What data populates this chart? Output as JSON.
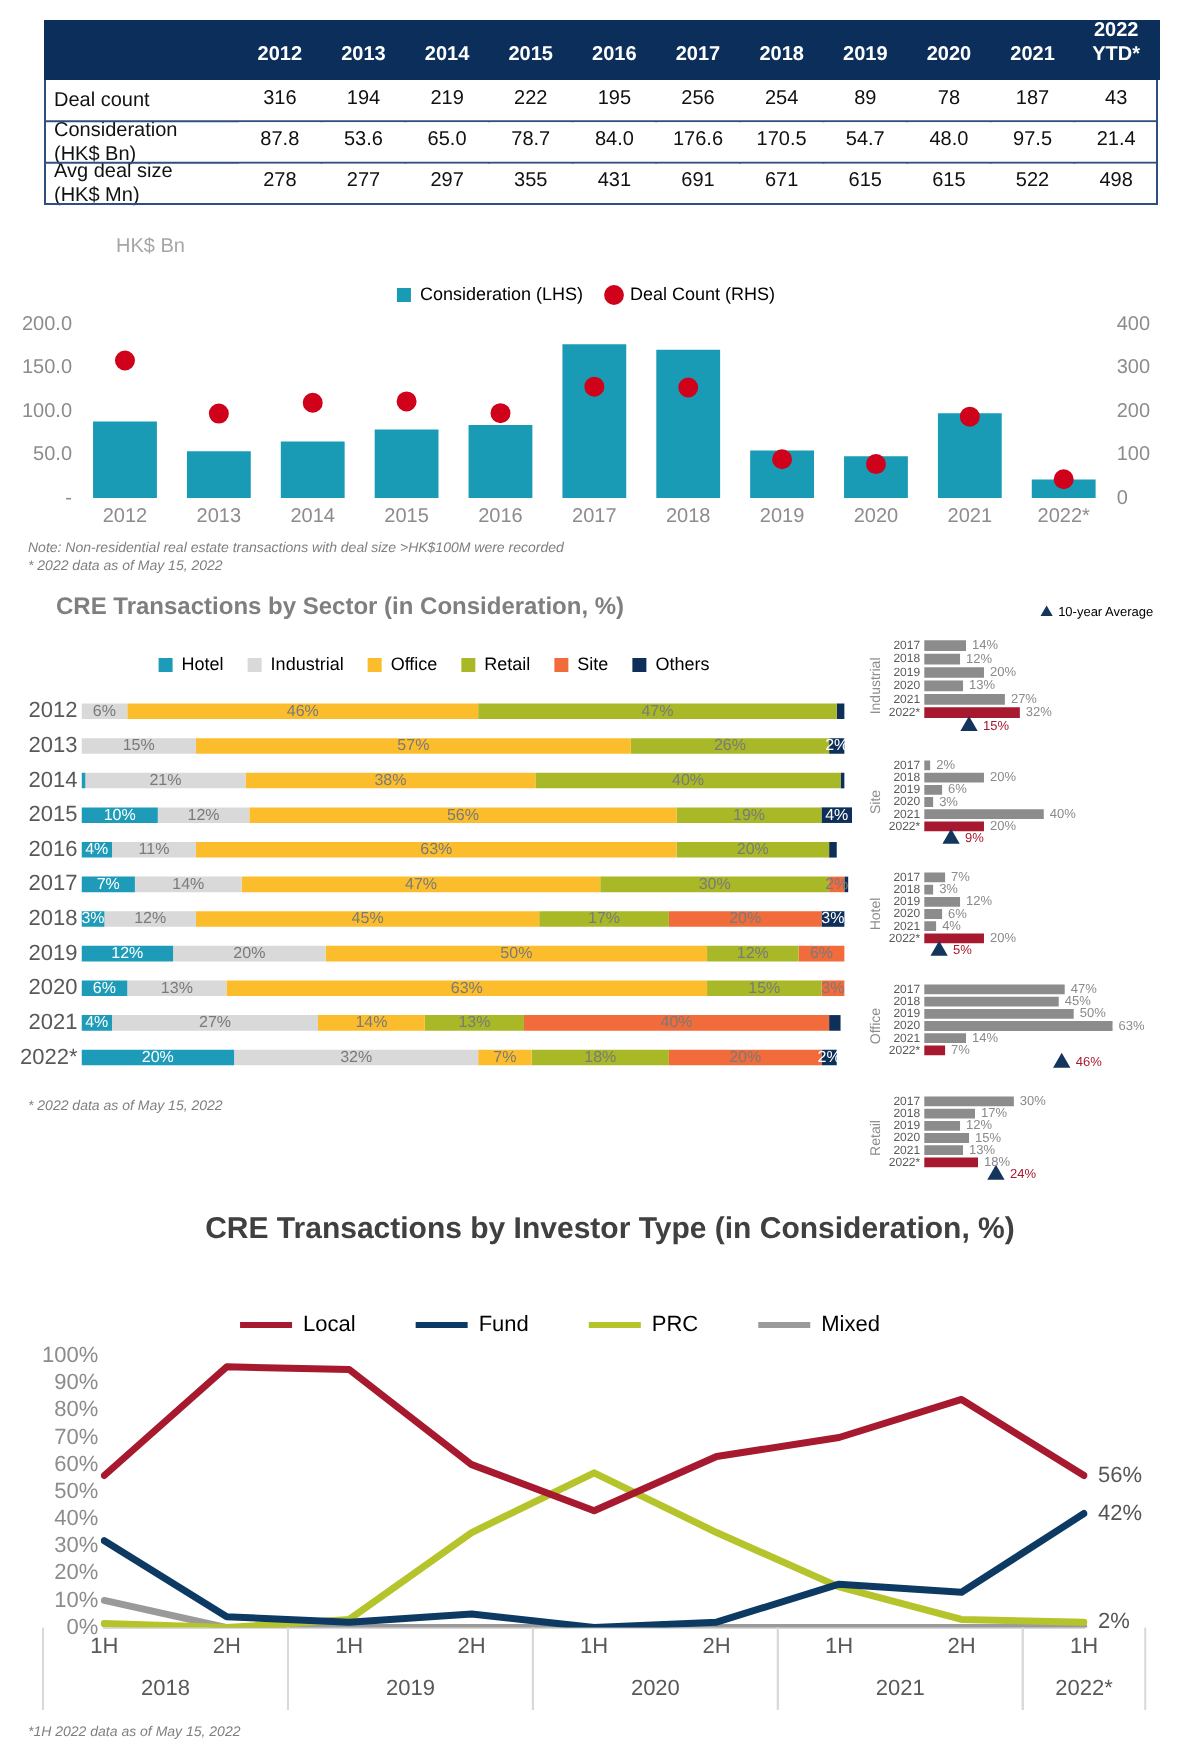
{
  "chart_data": [
    {
      "type": "heatmap",
      "categories": [
        "2012",
        "2013",
        "2014",
        "2015",
        "2016",
        "2017",
        "2018",
        "2019",
        "2020",
        "2021",
        "2022 YTD*"
      ],
      "y_categories": [
        "Deal count",
        "Consideration (HK$ Bn)",
        "Avg deal size (HK$ Mn)"
      ],
      "cells": [
        [
          316,
          194,
          219,
          222,
          195,
          256,
          254,
          89,
          78,
          187,
          43
        ],
        [
          87.8,
          53.6,
          65.0,
          78.7,
          84.0,
          176.6,
          170.5,
          54.7,
          48.0,
          97.5,
          21.4
        ],
        [
          278,
          277,
          297,
          355,
          431,
          691,
          671,
          615,
          615,
          522,
          498
        ]
      ],
      "cell_labels": [
        [
          "316",
          "194",
          "219",
          "222",
          "195",
          "256",
          "254",
          "89",
          "78",
          "187",
          "43"
        ],
        [
          "87.8",
          "53.6",
          "65.0",
          "78.7",
          "84.0",
          "176.6",
          "170.5",
          "54.7",
          "48.0",
          "97.5",
          "21.4"
        ],
        [
          "278",
          "277",
          "297",
          "355",
          "431",
          "691",
          "671",
          "615",
          "615",
          "522",
          "498"
        ]
      ]
    },
    {
      "type": "bar",
      "categories": [
        "2012",
        "2013",
        "2014",
        "2015",
        "2016",
        "2017",
        "2018",
        "2019",
        "2020",
        "2021",
        "2022*"
      ],
      "ylabel": "HK$ Bn",
      "legend": "top",
      "grid": false,
      "ylim": [
        0,
        200
      ],
      "yticks": [
        {
          "value": 0,
          "label": "-"
        },
        {
          "value": 50,
          "label": "50.0"
        },
        {
          "value": 100,
          "label": "100.0"
        },
        {
          "value": 150,
          "label": "150.0"
        },
        {
          "value": 200,
          "label": "200.0"
        }
      ],
      "y2lim": [
        0,
        400
      ],
      "y2ticks": [
        0,
        100,
        200,
        300,
        400
      ],
      "series": [
        {
          "name": "Consideration (LHS)",
          "type": "bar",
          "color": "#1a9bb5",
          "values": [
            87.8,
            53.6,
            65.0,
            78.7,
            84.0,
            176.6,
            170.5,
            54.7,
            48.0,
            97.5,
            21.4
          ]
        },
        {
          "name": "Deal Count (RHS)",
          "type": "scatter",
          "axis": "y2",
          "marker": "circle",
          "color": "#d0021b",
          "values": [
            316,
            194,
            219,
            222,
            195,
            256,
            254,
            89,
            78,
            187,
            43
          ]
        }
      ],
      "annotations": [
        "Note: Non-residential real estate transactions with deal size >HK$100M were recorded",
        "* 2022 data as of May 15, 2022"
      ]
    },
    {
      "type": "bar",
      "title": "CRE Transactions by Sector (in Consideration, %)",
      "orientation": "horizontal",
      "stacked": true,
      "legend": "top",
      "grid": false,
      "categories": [
        "2012",
        "2013",
        "2014",
        "2015",
        "2016",
        "2017",
        "2018",
        "2019",
        "2020",
        "2021",
        "2022*"
      ],
      "series": [
        {
          "name": "Hotel",
          "color": "#1e9bb8",
          "values": [
            0,
            0,
            0.5,
            10,
            4,
            7,
            3,
            12,
            6,
            4,
            20
          ],
          "value_labels": [
            null,
            null,
            null,
            "10%",
            "4%",
            "7%",
            "3%",
            "12%",
            "6%",
            "4%",
            "20%"
          ]
        },
        {
          "name": "Industrial",
          "color": "#d9d9d9",
          "values": [
            6,
            15,
            21,
            12,
            11,
            14,
            12,
            20,
            13,
            27,
            32
          ],
          "value_labels": [
            "6%",
            "15%",
            "21%",
            "12%",
            "11%",
            "14%",
            "12%",
            "20%",
            "13%",
            "27%",
            "32%"
          ]
        },
        {
          "name": "Office",
          "color": "#fbbd2c",
          "values": [
            46,
            57,
            38,
            56,
            63,
            47,
            45,
            50,
            63,
            14,
            7
          ],
          "value_labels": [
            "46%",
            "57%",
            "38%",
            "56%",
            "63%",
            "47%",
            "45%",
            "50%",
            "63%",
            "14%",
            "7%"
          ]
        },
        {
          "name": "Retail",
          "color": "#a8b826",
          "values": [
            47,
            26,
            40,
            19,
            20,
            30,
            17,
            12,
            15,
            13,
            18
          ],
          "value_labels": [
            "47%",
            "26%",
            "40%",
            "19%",
            "20%",
            "30%",
            "17%",
            "12%",
            "15%",
            "13%",
            "18%"
          ]
        },
        {
          "name": "Site",
          "color": "#f26b3a",
          "values": [
            0,
            0,
            0,
            0,
            0,
            2,
            20,
            6,
            3,
            40,
            20
          ],
          "value_labels": [
            null,
            null,
            null,
            null,
            null,
            "2%",
            "20%",
            "6%",
            "3%",
            "40%",
            "20%"
          ]
        },
        {
          "name": "Others",
          "color": "#0d2f5a",
          "values": [
            1,
            2,
            0.5,
            4,
            1,
            0.5,
            3,
            0,
            0,
            1.5,
            2
          ],
          "value_labels": [
            null,
            "2%",
            null,
            "4%",
            null,
            null,
            "3%",
            null,
            null,
            null,
            "2%"
          ]
        }
      ],
      "annotations": [
        "* 2022 data as of May 15, 2022"
      ]
    },
    {
      "type": "bar",
      "orientation": "horizontal",
      "ylabel": "Industrial",
      "legend": "top right",
      "categories": [
        "2017",
        "2018",
        "2019",
        "2020",
        "2021",
        "2022*",
        null
      ],
      "series": [
        {
          "type": "bar",
          "colors": [
            "#8c8c8c",
            "#8c8c8c",
            "#8c8c8c",
            "#8c8c8c",
            "#8c8c8c",
            "#a6192e",
            null
          ],
          "values": [
            14,
            12,
            20,
            13,
            27,
            32,
            null
          ],
          "value_labels": [
            "14%",
            "12%",
            "20%",
            "13%",
            "27%",
            "32%",
            null
          ]
        },
        {
          "name": "10-year Average",
          "type": "scatter",
          "marker": "triangle",
          "color": "#14365d",
          "values": [
            null,
            null,
            null,
            null,
            null,
            null,
            15
          ],
          "value_labels": [
            null,
            null,
            null,
            null,
            null,
            null,
            "15%"
          ]
        }
      ]
    },
    {
      "type": "bar",
      "orientation": "horizontal",
      "ylabel": "Site",
      "categories": [
        "2017",
        "2018",
        "2019",
        "2020",
        "2021",
        "2022*",
        null
      ],
      "series": [
        {
          "type": "bar",
          "colors": [
            "#8c8c8c",
            "#8c8c8c",
            "#8c8c8c",
            "#8c8c8c",
            "#8c8c8c",
            "#a6192e",
            null
          ],
          "values": [
            2,
            20,
            6,
            3,
            40,
            20,
            null
          ],
          "value_labels": [
            "2%",
            "20%",
            "6%",
            "3%",
            "40%",
            "20%",
            null
          ]
        },
        {
          "type": "scatter",
          "marker": "triangle",
          "color": "#14365d",
          "values": [
            null,
            null,
            null,
            null,
            null,
            null,
            9
          ],
          "value_labels": [
            null,
            null,
            null,
            null,
            null,
            null,
            "9%"
          ]
        }
      ]
    },
    {
      "type": "bar",
      "orientation": "horizontal",
      "ylabel": "Hotel",
      "categories": [
        "2017",
        "2018",
        "2019",
        "2020",
        "2021",
        "2022*",
        null
      ],
      "series": [
        {
          "type": "bar",
          "colors": [
            "#8c8c8c",
            "#8c8c8c",
            "#8c8c8c",
            "#8c8c8c",
            "#8c8c8c",
            "#a6192e",
            null
          ],
          "values": [
            7,
            3,
            12,
            6,
            4,
            20,
            null
          ],
          "value_labels": [
            "7%",
            "3%",
            "12%",
            "6%",
            "4%",
            "20%",
            null
          ]
        },
        {
          "type": "scatter",
          "marker": "triangle",
          "color": "#14365d",
          "values": [
            null,
            null,
            null,
            null,
            null,
            null,
            5
          ],
          "value_labels": [
            null,
            null,
            null,
            null,
            null,
            null,
            "5%"
          ]
        }
      ]
    },
    {
      "type": "bar",
      "orientation": "horizontal",
      "ylabel": "Office",
      "categories": [
        "2017",
        "2018",
        "2019",
        "2020",
        "2021",
        "2022*",
        null
      ],
      "series": [
        {
          "type": "bar",
          "colors": [
            "#8c8c8c",
            "#8c8c8c",
            "#8c8c8c",
            "#8c8c8c",
            "#8c8c8c",
            "#a6192e",
            null
          ],
          "values": [
            47,
            45,
            50,
            63,
            14,
            7,
            null
          ],
          "value_labels": [
            "47%",
            "45%",
            "50%",
            "63%",
            "14%",
            "7%",
            null
          ]
        },
        {
          "type": "scatter",
          "marker": "triangle",
          "color": "#14365d",
          "values": [
            null,
            null,
            null,
            null,
            null,
            null,
            46
          ],
          "value_labels": [
            null,
            null,
            null,
            null,
            null,
            null,
            "46%"
          ]
        }
      ]
    },
    {
      "type": "bar",
      "orientation": "horizontal",
      "ylabel": "Retail",
      "categories": [
        "2017",
        "2018",
        "2019",
        "2020",
        "2021",
        "2022*",
        null
      ],
      "series": [
        {
          "type": "bar",
          "colors": [
            "#8c8c8c",
            "#8c8c8c",
            "#8c8c8c",
            "#8c8c8c",
            "#8c8c8c",
            "#a6192e",
            null
          ],
          "values": [
            30,
            17,
            12,
            15,
            13,
            18,
            null
          ],
          "value_labels": [
            "30%",
            "17%",
            "12%",
            "15%",
            "13%",
            "18%",
            null
          ]
        },
        {
          "type": "scatter",
          "marker": "triangle",
          "color": "#14365d",
          "values": [
            null,
            null,
            null,
            null,
            null,
            null,
            24
          ],
          "value_labels": [
            null,
            null,
            null,
            null,
            null,
            null,
            "24%"
          ]
        }
      ]
    },
    {
      "type": "line",
      "title": "CRE Transactions by Investor Type (in Consideration, %)",
      "legend": "top",
      "grid": false,
      "marker": "none",
      "line_style": "solid",
      "categories": [
        "1H",
        "2H",
        "1H",
        "2H",
        "1H",
        "2H",
        "1H",
        "2H",
        "1H"
      ],
      "ylim": [
        0,
        100
      ],
      "yticks": [
        {
          "value": 0,
          "label": "0%"
        },
        {
          "value": 10,
          "label": "10%"
        },
        {
          "value": 20,
          "label": "20%"
        },
        {
          "value": 30,
          "label": "30%"
        },
        {
          "value": 40,
          "label": "40%"
        },
        {
          "value": 50,
          "label": "50%"
        },
        {
          "value": 60,
          "label": "60%"
        },
        {
          "value": 70,
          "label": "70%"
        },
        {
          "value": 80,
          "label": "80%"
        },
        {
          "value": 90,
          "label": "90%"
        },
        {
          "value": 100,
          "label": "100%"
        }
      ],
      "series": [
        {
          "name": "Local",
          "color": "#a6192e",
          "values": [
            56,
            96,
            95,
            60,
            43,
            63,
            70,
            84,
            56
          ],
          "value_labels": [
            null,
            null,
            null,
            null,
            null,
            null,
            null,
            null,
            "56%"
          ]
        },
        {
          "name": "Fund",
          "color": "#0d3a63",
          "values": [
            32,
            4,
            2,
            5,
            0,
            2,
            16,
            13,
            42
          ],
          "value_labels": [
            null,
            null,
            null,
            null,
            null,
            null,
            null,
            null,
            "42%"
          ]
        },
        {
          "name": "PRC",
          "color": "#b5c42a",
          "values": [
            1.5,
            0,
            3,
            35,
            57,
            35,
            15,
            3,
            2
          ],
          "value_labels": [
            null,
            null,
            null,
            null,
            null,
            null,
            null,
            null,
            "2%"
          ]
        },
        {
          "name": "Mixed",
          "color": "#9a9a9a",
          "values": [
            10,
            0,
            0,
            0,
            0,
            0,
            0,
            0,
            0
          ]
        }
      ],
      "annotations": [
        "2018",
        "2019",
        "2020",
        "2021",
        "2022*",
        "*1H 2022 data as of May 15, 2022"
      ]
    }
  ]
}
